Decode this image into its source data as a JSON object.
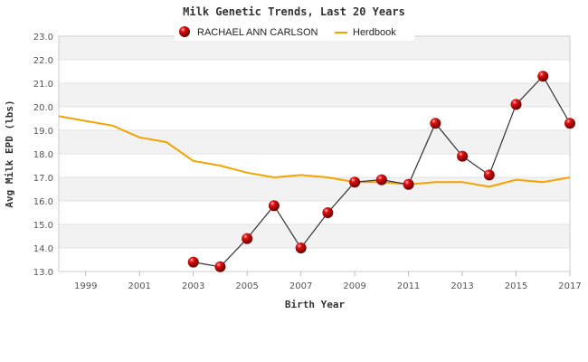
{
  "chart_data": {
    "type": "line",
    "title": "Milk Genetic Trends, Last 20 Years",
    "xlabel": "Birth Year",
    "ylabel": "Avg Milk EPD (lbs)",
    "xlim": [
      1998,
      2017
    ],
    "ylim": [
      13.0,
      23.0
    ],
    "x_ticks": [
      "1999",
      "2001",
      "2003",
      "2005",
      "2007",
      "2009",
      "2011",
      "2013",
      "2015",
      "2017"
    ],
    "y_ticks": [
      "13.0",
      "14.0",
      "15.0",
      "16.0",
      "17.0",
      "18.0",
      "19.0",
      "20.0",
      "21.0",
      "22.0",
      "23.0"
    ],
    "grid": true,
    "legend_position": "top",
    "series": [
      {
        "name": "RACHAEL ANN CARLSON",
        "color": "#cc0000",
        "line_color": "#333333",
        "marker": "sphere",
        "x": [
          2003,
          2004,
          2005,
          2006,
          2007,
          2008,
          2009,
          2010,
          2011,
          2012,
          2013,
          2014,
          2015,
          2016,
          2017
        ],
        "y": [
          13.4,
          13.2,
          14.4,
          15.8,
          14.0,
          15.5,
          16.8,
          16.9,
          16.7,
          19.3,
          17.9,
          17.1,
          20.1,
          21.3,
          19.3
        ]
      },
      {
        "name": "Herdbook",
        "color": "#f5a300",
        "marker": "none",
        "x": [
          1998,
          1999,
          2000,
          2001,
          2002,
          2003,
          2004,
          2005,
          2006,
          2007,
          2008,
          2009,
          2010,
          2011,
          2012,
          2013,
          2014,
          2015,
          2016,
          2017
        ],
        "y": [
          19.6,
          19.4,
          19.2,
          18.7,
          18.5,
          17.7,
          17.5,
          17.2,
          17.0,
          17.1,
          17.0,
          16.8,
          16.8,
          16.7,
          16.8,
          16.8,
          16.6,
          16.9,
          16.8,
          17.0
        ]
      }
    ]
  }
}
